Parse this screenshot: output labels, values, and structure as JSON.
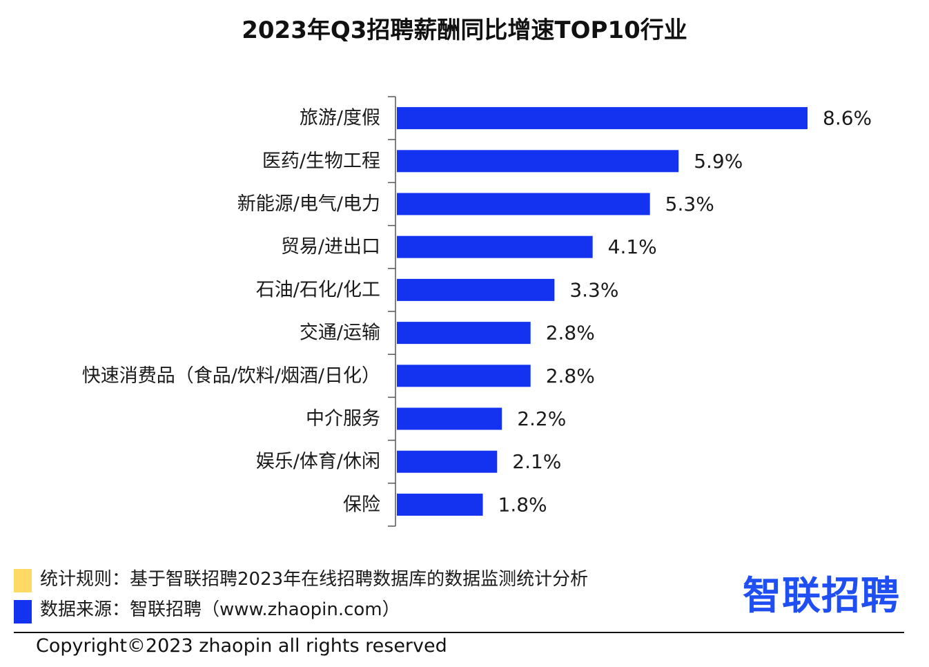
{
  "colors": {
    "bar": "#1433F0",
    "rule_yellow": "#FFD966",
    "source_blue": "#1433F0",
    "logo_blue": "#1f4ff2",
    "logo_dot": "#f7c21a"
  },
  "chart_data": {
    "type": "bar",
    "orientation": "horizontal",
    "title": "2023年Q3招聘薪酬同比增速TOP10行业",
    "categories": [
      "旅游/度假",
      "医药/生物工程",
      "新能源/电气/电力",
      "贸易/进出口",
      "石油/石化/化工",
      "交通/运输",
      "快速消费品（食品/饮料/烟酒/日化）",
      "中介服务",
      "娱乐/体育/休闲",
      "保险"
    ],
    "values": [
      8.6,
      5.9,
      5.3,
      4.1,
      3.3,
      2.8,
      2.8,
      2.2,
      2.1,
      1.8
    ],
    "value_labels": [
      "8.6%",
      "5.9%",
      "5.3%",
      "4.1%",
      "3.3%",
      "2.8%",
      "2.8%",
      "2.2%",
      "2.1%",
      "1.8%"
    ],
    "xlim": [
      0,
      8.6
    ],
    "grid": false,
    "legend": "none"
  },
  "footer": {
    "rule_text": "统计规则：基于智联招聘2023年在线招聘数据库的数据监测统计分析",
    "source_text": "数据来源：智联招聘（www.zhaopin.com）",
    "logo_text": "智联招聘",
    "copyright": "Copyright©2023 zhaopin all rights reserved"
  }
}
